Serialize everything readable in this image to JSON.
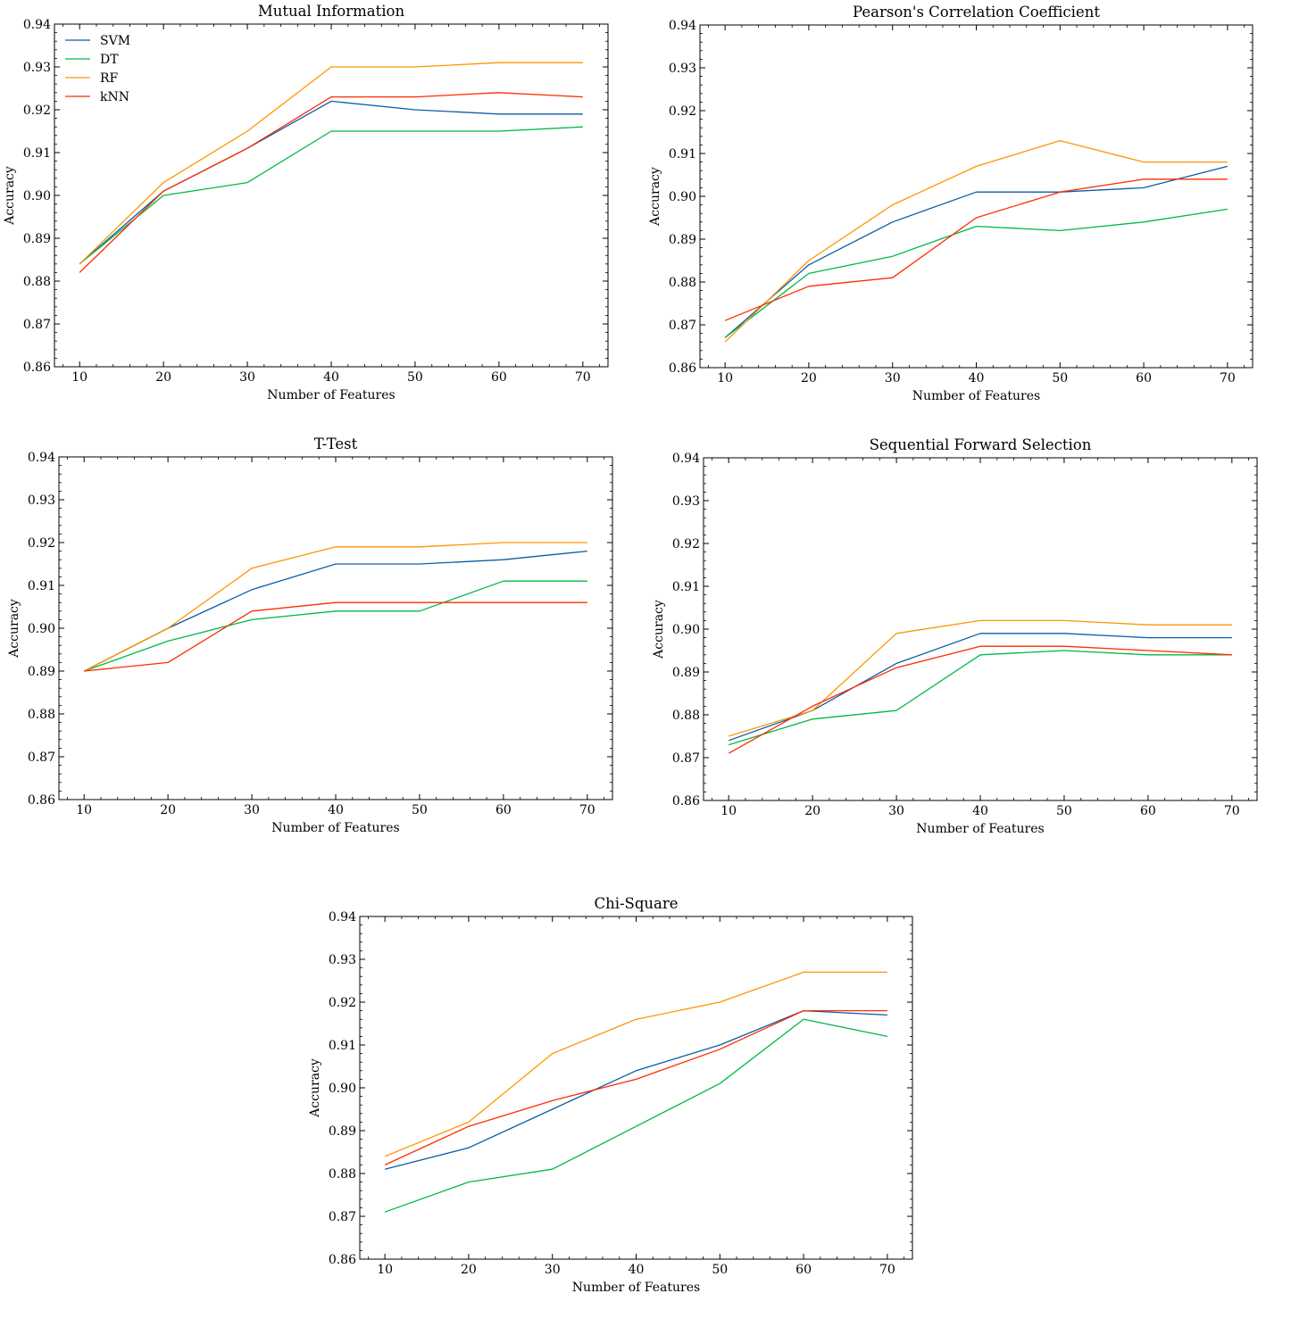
{
  "series_colors": {
    "SVM": "#0C5DA5",
    "DT": "#00B945",
    "RF": "#FF9500",
    "kNN": "#FF2C00"
  },
  "legend": [
    "SVM",
    "DT",
    "RF",
    "kNN"
  ],
  "chart_data": [
    {
      "type": "line",
      "title": "Mutual Information",
      "xlabel": "Number of Features",
      "ylabel": "Accuracy",
      "x": [
        10,
        20,
        30,
        40,
        50,
        60,
        70
      ],
      "xticks": [
        "10",
        "20",
        "30",
        "40",
        "50",
        "60",
        "70"
      ],
      "yticks": [
        "0.86",
        "0.87",
        "0.88",
        "0.89",
        "0.90",
        "0.91",
        "0.92",
        "0.93",
        "0.94"
      ],
      "ylim": [
        0.86,
        0.94
      ],
      "xlim": [
        7,
        73
      ],
      "legend": "upper-left",
      "series": [
        {
          "name": "SVM",
          "values": [
            0.884,
            0.901,
            0.911,
            0.922,
            0.92,
            0.919,
            0.919
          ]
        },
        {
          "name": "DT",
          "values": [
            0.884,
            0.9,
            0.903,
            0.915,
            0.915,
            0.915,
            0.916
          ]
        },
        {
          "name": "RF",
          "values": [
            0.884,
            0.903,
            0.915,
            0.93,
            0.93,
            0.931,
            0.931
          ]
        },
        {
          "name": "kNN",
          "values": [
            0.882,
            0.901,
            0.911,
            0.923,
            0.923,
            0.924,
            0.923
          ]
        }
      ]
    },
    {
      "type": "line",
      "title": "Pearson's Correlation Coefficient",
      "xlabel": "Number of Features",
      "ylabel": "Accuracy",
      "x": [
        10,
        20,
        30,
        40,
        50,
        60,
        70
      ],
      "xticks": [
        "10",
        "20",
        "30",
        "40",
        "50",
        "60",
        "70"
      ],
      "yticks": [
        "0.86",
        "0.87",
        "0.88",
        "0.89",
        "0.90",
        "0.91",
        "0.92",
        "0.93",
        "0.94"
      ],
      "ylim": [
        0.86,
        0.94
      ],
      "xlim": [
        7,
        73
      ],
      "series": [
        {
          "name": "SVM",
          "values": [
            0.867,
            0.884,
            0.894,
            0.901,
            0.901,
            0.902,
            0.907
          ]
        },
        {
          "name": "DT",
          "values": [
            0.867,
            0.882,
            0.886,
            0.893,
            0.892,
            0.894,
            0.897
          ]
        },
        {
          "name": "RF",
          "values": [
            0.866,
            0.885,
            0.898,
            0.907,
            0.913,
            0.908,
            0.908
          ]
        },
        {
          "name": "kNN",
          "values": [
            0.871,
            0.879,
            0.881,
            0.895,
            0.901,
            0.904,
            0.904
          ]
        }
      ]
    },
    {
      "type": "line",
      "title": "T-Test",
      "xlabel": "Number of Features",
      "ylabel": "Accuracy",
      "x": [
        10,
        20,
        30,
        40,
        50,
        60,
        70
      ],
      "xticks": [
        "10",
        "20",
        "30",
        "40",
        "50",
        "60",
        "70"
      ],
      "yticks": [
        "0.86",
        "0.87",
        "0.88",
        "0.89",
        "0.90",
        "0.91",
        "0.92",
        "0.93",
        "0.94"
      ],
      "ylim": [
        0.86,
        0.94
      ],
      "xlim": [
        7,
        73
      ],
      "series": [
        {
          "name": "SVM",
          "values": [
            0.89,
            0.9,
            0.909,
            0.915,
            0.915,
            0.916,
            0.918
          ]
        },
        {
          "name": "DT",
          "values": [
            0.89,
            0.897,
            0.902,
            0.904,
            0.904,
            0.911,
            0.911
          ]
        },
        {
          "name": "RF",
          "values": [
            0.89,
            0.9,
            0.914,
            0.919,
            0.919,
            0.92,
            0.92
          ]
        },
        {
          "name": "kNN",
          "values": [
            0.89,
            0.892,
            0.904,
            0.906,
            0.906,
            0.906,
            0.906
          ]
        }
      ]
    },
    {
      "type": "line",
      "title": "Sequential Forward Selection",
      "xlabel": "Number of Features",
      "ylabel": "Accuracy",
      "x": [
        10,
        20,
        30,
        40,
        50,
        60,
        70
      ],
      "xticks": [
        "10",
        "20",
        "30",
        "40",
        "50",
        "60",
        "70"
      ],
      "yticks": [
        "0.86",
        "0.87",
        "0.88",
        "0.89",
        "0.90",
        "0.91",
        "0.92",
        "0.93",
        "0.94"
      ],
      "ylim": [
        0.86,
        0.94
      ],
      "xlim": [
        7,
        73
      ],
      "series": [
        {
          "name": "SVM",
          "values": [
            0.874,
            0.881,
            0.892,
            0.899,
            0.899,
            0.898,
            0.898
          ]
        },
        {
          "name": "DT",
          "values": [
            0.873,
            0.879,
            0.881,
            0.894,
            0.895,
            0.894,
            0.894
          ]
        },
        {
          "name": "RF",
          "values": [
            0.875,
            0.881,
            0.899,
            0.902,
            0.902,
            0.901,
            0.901
          ]
        },
        {
          "name": "kNN",
          "values": [
            0.871,
            0.882,
            0.891,
            0.896,
            0.896,
            0.895,
            0.894
          ]
        }
      ]
    },
    {
      "type": "line",
      "title": "Chi-Square",
      "xlabel": "Number of Features",
      "ylabel": "Accuracy",
      "x": [
        10,
        20,
        30,
        40,
        50,
        60,
        70
      ],
      "xticks": [
        "10",
        "20",
        "30",
        "40",
        "50",
        "60",
        "70"
      ],
      "yticks": [
        "0.86",
        "0.87",
        "0.88",
        "0.89",
        "0.90",
        "0.91",
        "0.92",
        "0.93",
        "0.94"
      ],
      "ylim": [
        0.86,
        0.94
      ],
      "xlim": [
        7,
        73
      ],
      "series": [
        {
          "name": "SVM",
          "values": [
            0.881,
            0.886,
            0.895,
            0.904,
            0.91,
            0.918,
            0.917
          ]
        },
        {
          "name": "DT",
          "values": [
            0.871,
            0.878,
            0.881,
            0.891,
            0.901,
            0.916,
            0.912
          ]
        },
        {
          "name": "RF",
          "values": [
            0.884,
            0.892,
            0.908,
            0.916,
            0.92,
            0.927,
            0.927
          ]
        },
        {
          "name": "kNN",
          "values": [
            0.882,
            0.891,
            0.897,
            0.902,
            0.909,
            0.918,
            0.918
          ]
        }
      ]
    }
  ]
}
